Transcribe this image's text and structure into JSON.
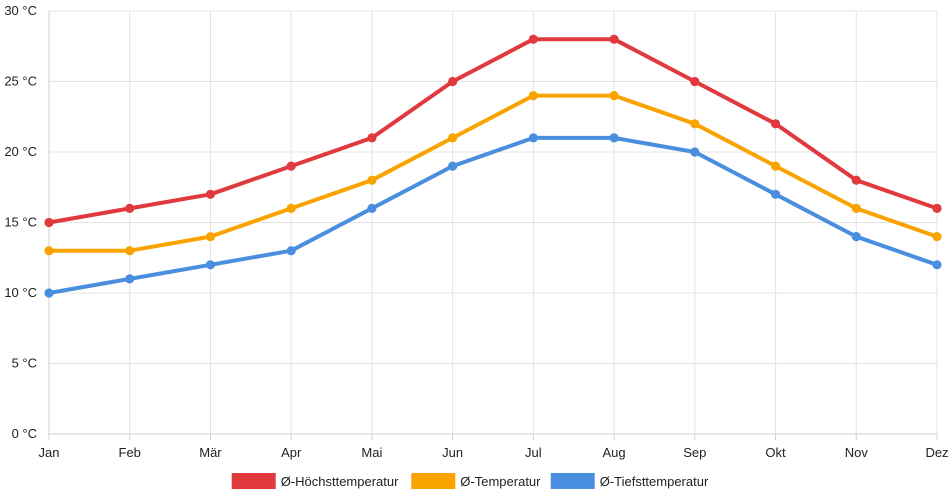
{
  "chart_data": {
    "type": "line",
    "title": "",
    "xlabel": "",
    "ylabel": "",
    "categories": [
      "Jan",
      "Feb",
      "Mär",
      "Apr",
      "Mai",
      "Jun",
      "Jul",
      "Aug",
      "Sep",
      "Okt",
      "Nov",
      "Dez"
    ],
    "y_unit": "°C",
    "ylim": [
      0,
      30
    ],
    "y_ticks": [
      0,
      5,
      10,
      15,
      20,
      25,
      30
    ],
    "y_tick_labels": [
      "0 °C",
      "5 °C",
      "10 °C",
      "15 °C",
      "20 °C",
      "25 °C",
      "30 °C"
    ],
    "grid": true,
    "legend_position": "bottom-center",
    "series": [
      {
        "name": "Ø-Höchsttemperatur",
        "color": "#e0393e",
        "values": [
          15,
          16,
          17,
          19,
          21,
          25,
          28,
          28,
          25,
          22,
          18,
          16
        ]
      },
      {
        "name": "Ø-Temperatur",
        "color": "#f9a300",
        "values": [
          13,
          13,
          14,
          16,
          18,
          21,
          24,
          24,
          22,
          19,
          16,
          14
        ]
      },
      {
        "name": "Ø-Tiefsttemperatur",
        "color": "#4a8fdf",
        "values": [
          10,
          11,
          12,
          13,
          16,
          19,
          21,
          21,
          20,
          17,
          14,
          12
        ]
      }
    ]
  }
}
